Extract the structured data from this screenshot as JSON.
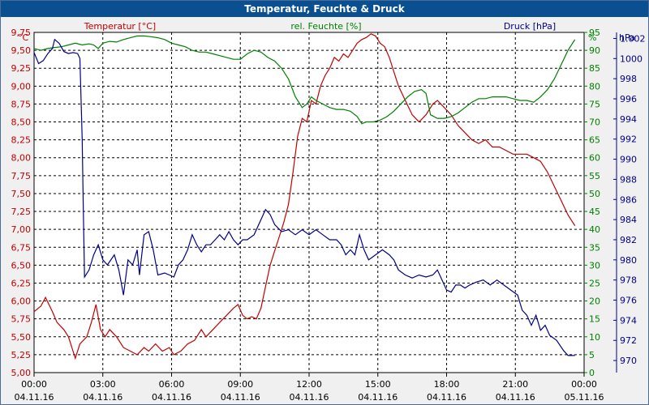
{
  "window": {
    "title": "Temperatur, Feuchte & Druck"
  },
  "colors": {
    "temperature": "#c00000",
    "humidity": "#008000",
    "pressure": "#00008b",
    "grid": "#000000",
    "background": "#ffffff"
  },
  "chart_data": {
    "type": "line",
    "title": "Temperatur, Feuchte & Druck",
    "x_ticks": [
      {
        "time": "00:00",
        "date": "04.11.16"
      },
      {
        "time": "03:00",
        "date": "04.11.16"
      },
      {
        "time": "06:00",
        "date": "04.11.16"
      },
      {
        "time": "09:00",
        "date": "04.11.16"
      },
      {
        "time": "12:00",
        "date": "04.11.16"
      },
      {
        "time": "15:00",
        "date": "04.11.16"
      },
      {
        "time": "18:00",
        "date": "04.11.16"
      },
      {
        "time": "21:00",
        "date": "04.11.16"
      },
      {
        "time": "00:00",
        "date": "05.11.16"
      }
    ],
    "xlim_hours": [
      0,
      24
    ],
    "axes": {
      "temperature": {
        "label": "Temperatur [°C]",
        "unit": "°C",
        "ylim": [
          5.0,
          9.75
        ],
        "ticks": [
          "9,75",
          "9,50",
          "9,25",
          "9,00",
          "8,75",
          "8,50",
          "8,25",
          "8,00",
          "7,75",
          "7,50",
          "7,25",
          "7,00",
          "6,75",
          "6,50",
          "6,25",
          "6,00",
          "5,75",
          "5,50",
          "5,25",
          "5,00"
        ]
      },
      "humidity": {
        "label": "rel. Feuchte [%]",
        "unit": "%",
        "ylim": [
          0,
          95
        ],
        "ticks": [
          "95",
          "90",
          "85",
          "80",
          "75",
          "70",
          "65",
          "60",
          "55",
          "50",
          "45",
          "40",
          "35",
          "30",
          "25",
          "20",
          "15",
          "10",
          "5",
          "0"
        ]
      },
      "pressure": {
        "label": "Druck [hPa]",
        "unit": "hPa",
        "ylim": [
          968.8,
          1002.6
        ],
        "ticks": [
          "1.002",
          "1000",
          "998",
          "996",
          "994",
          "992",
          "990",
          "988",
          "986",
          "984",
          "982",
          "980",
          "978",
          "976",
          "974",
          "972",
          "970"
        ]
      }
    },
    "series": [
      {
        "name": "Temperatur",
        "axis": "temperature",
        "points": [
          [
            0,
            5.85
          ],
          [
            0.3,
            5.93
          ],
          [
            0.5,
            6.05
          ],
          [
            0.8,
            5.85
          ],
          [
            1.0,
            5.7
          ],
          [
            1.3,
            5.6
          ],
          [
            1.5,
            5.5
          ],
          [
            1.7,
            5.3
          ],
          [
            1.8,
            5.2
          ],
          [
            2.0,
            5.4
          ],
          [
            2.3,
            5.5
          ],
          [
            2.5,
            5.7
          ],
          [
            2.7,
            5.95
          ],
          [
            2.9,
            5.6
          ],
          [
            3.1,
            5.5
          ],
          [
            3.3,
            5.6
          ],
          [
            3.6,
            5.5
          ],
          [
            3.9,
            5.35
          ],
          [
            4.2,
            5.3
          ],
          [
            4.5,
            5.25
          ],
          [
            4.8,
            5.35
          ],
          [
            5.0,
            5.3
          ],
          [
            5.3,
            5.4
          ],
          [
            5.6,
            5.3
          ],
          [
            5.9,
            5.35
          ],
          [
            6.1,
            5.25
          ],
          [
            6.4,
            5.3
          ],
          [
            6.7,
            5.4
          ],
          [
            7.0,
            5.45
          ],
          [
            7.3,
            5.6
          ],
          [
            7.5,
            5.5
          ],
          [
            7.8,
            5.6
          ],
          [
            8.1,
            5.7
          ],
          [
            8.4,
            5.8
          ],
          [
            8.7,
            5.9
          ],
          [
            8.9,
            5.95
          ],
          [
            9.1,
            5.8
          ],
          [
            9.3,
            5.75
          ],
          [
            9.5,
            5.78
          ],
          [
            9.7,
            5.75
          ],
          [
            9.9,
            5.9
          ],
          [
            10.1,
            6.2
          ],
          [
            10.3,
            6.5
          ],
          [
            10.5,
            6.7
          ],
          [
            10.7,
            6.9
          ],
          [
            10.9,
            7.1
          ],
          [
            11.1,
            7.35
          ],
          [
            11.3,
            7.8
          ],
          [
            11.5,
            8.3
          ],
          [
            11.7,
            8.55
          ],
          [
            11.9,
            8.5
          ],
          [
            12.1,
            8.8
          ],
          [
            12.3,
            8.75
          ],
          [
            12.5,
            9.0
          ],
          [
            12.7,
            9.15
          ],
          [
            12.9,
            9.25
          ],
          [
            13.1,
            9.4
          ],
          [
            13.3,
            9.35
          ],
          [
            13.5,
            9.45
          ],
          [
            13.7,
            9.4
          ],
          [
            13.9,
            9.5
          ],
          [
            14.1,
            9.6
          ],
          [
            14.3,
            9.65
          ],
          [
            14.5,
            9.68
          ],
          [
            14.7,
            9.73
          ],
          [
            14.9,
            9.7
          ],
          [
            15.1,
            9.6
          ],
          [
            15.3,
            9.55
          ],
          [
            15.5,
            9.4
          ],
          [
            15.7,
            9.2
          ],
          [
            15.9,
            9.0
          ],
          [
            16.2,
            8.8
          ],
          [
            16.5,
            8.6
          ],
          [
            16.8,
            8.5
          ],
          [
            17.1,
            8.6
          ],
          [
            17.4,
            8.75
          ],
          [
            17.6,
            8.8
          ],
          [
            17.9,
            8.7
          ],
          [
            18.2,
            8.6
          ],
          [
            18.5,
            8.45
          ],
          [
            18.8,
            8.35
          ],
          [
            19.1,
            8.25
          ],
          [
            19.4,
            8.2
          ],
          [
            19.7,
            8.25
          ],
          [
            20.0,
            8.15
          ],
          [
            20.3,
            8.15
          ],
          [
            20.6,
            8.1
          ],
          [
            20.9,
            8.05
          ],
          [
            21.2,
            8.05
          ],
          [
            21.5,
            8.05
          ],
          [
            21.8,
            8.0
          ],
          [
            22.1,
            7.95
          ],
          [
            22.4,
            7.8
          ],
          [
            22.7,
            7.6
          ],
          [
            23.0,
            7.4
          ],
          [
            23.3,
            7.2
          ],
          [
            23.6,
            7.05
          ]
        ]
      },
      {
        "name": "rel. Feuchte",
        "axis": "humidity",
        "points": [
          [
            0,
            90.5
          ],
          [
            0.3,
            90
          ],
          [
            0.6,
            90.5
          ],
          [
            0.9,
            90.8
          ],
          [
            1.2,
            91
          ],
          [
            1.5,
            91.5
          ],
          [
            1.8,
            92
          ],
          [
            2.1,
            91.5
          ],
          [
            2.4,
            91.8
          ],
          [
            2.6,
            91.5
          ],
          [
            2.8,
            90.5
          ],
          [
            3.0,
            92
          ],
          [
            3.3,
            92.5
          ],
          [
            3.6,
            92.3
          ],
          [
            3.9,
            93
          ],
          [
            4.2,
            93.5
          ],
          [
            4.5,
            94
          ],
          [
            4.8,
            94
          ],
          [
            5.1,
            93.8
          ],
          [
            5.4,
            93.5
          ],
          [
            5.7,
            93
          ],
          [
            6.0,
            92
          ],
          [
            6.3,
            91.5
          ],
          [
            6.6,
            91
          ],
          [
            6.9,
            90
          ],
          [
            7.2,
            89.5
          ],
          [
            7.5,
            89.5
          ],
          [
            7.8,
            89
          ],
          [
            8.1,
            88.5
          ],
          [
            8.4,
            88
          ],
          [
            8.7,
            87.5
          ],
          [
            9.0,
            87.5
          ],
          [
            9.3,
            89
          ],
          [
            9.6,
            90
          ],
          [
            9.9,
            89.5
          ],
          [
            10.2,
            88
          ],
          [
            10.5,
            87
          ],
          [
            10.8,
            85
          ],
          [
            11.1,
            82
          ],
          [
            11.4,
            77
          ],
          [
            11.7,
            74
          ],
          [
            11.9,
            75
          ],
          [
            12.1,
            77
          ],
          [
            12.3,
            76
          ],
          [
            12.6,
            75
          ],
          [
            12.9,
            74
          ],
          [
            13.2,
            73.5
          ],
          [
            13.5,
            73.5
          ],
          [
            13.8,
            73
          ],
          [
            14.1,
            71.5
          ],
          [
            14.3,
            69.5
          ],
          [
            14.5,
            70
          ],
          [
            14.8,
            70
          ],
          [
            15.1,
            70.5
          ],
          [
            15.4,
            71.5
          ],
          [
            15.7,
            73
          ],
          [
            16.0,
            75
          ],
          [
            16.3,
            77
          ],
          [
            16.6,
            78.5
          ],
          [
            16.9,
            79
          ],
          [
            17.1,
            78
          ],
          [
            17.3,
            72
          ],
          [
            17.6,
            71
          ],
          [
            17.9,
            71
          ],
          [
            18.2,
            71.5
          ],
          [
            18.5,
            72.5
          ],
          [
            18.8,
            74
          ],
          [
            19.1,
            75.5
          ],
          [
            19.4,
            76.5
          ],
          [
            19.7,
            76.5
          ],
          [
            20.0,
            77
          ],
          [
            20.3,
            77
          ],
          [
            20.6,
            77
          ],
          [
            20.9,
            76.5
          ],
          [
            21.2,
            76
          ],
          [
            21.5,
            76
          ],
          [
            21.8,
            75.5
          ],
          [
            22.1,
            77
          ],
          [
            22.4,
            79
          ],
          [
            22.7,
            82
          ],
          [
            23.0,
            86
          ],
          [
            23.3,
            90
          ],
          [
            23.6,
            93
          ]
        ]
      },
      {
        "name": "Druck",
        "axis": "pressure",
        "points": [
          [
            0,
            1000.6
          ],
          [
            0.2,
            999.5
          ],
          [
            0.4,
            999.8
          ],
          [
            0.6,
            1000.5
          ],
          [
            0.8,
            1001
          ],
          [
            0.9,
            1001.9
          ],
          [
            1.1,
            1001.5
          ],
          [
            1.3,
            1000.7
          ],
          [
            1.5,
            1000.5
          ],
          [
            1.7,
            1000.6
          ],
          [
            1.9,
            1000.5
          ],
          [
            2.0,
            1000.0
          ],
          [
            2.1,
            992
          ],
          [
            2.15,
            985
          ],
          [
            2.2,
            978.3
          ],
          [
            2.4,
            979
          ],
          [
            2.6,
            980.5
          ],
          [
            2.8,
            981.5
          ],
          [
            3.0,
            980
          ],
          [
            3.2,
            979.5
          ],
          [
            3.5,
            980.5
          ],
          [
            3.7,
            979
          ],
          [
            3.9,
            976.5
          ],
          [
            4.1,
            980
          ],
          [
            4.3,
            979.5
          ],
          [
            4.5,
            981
          ],
          [
            4.6,
            978.5
          ],
          [
            4.8,
            982.5
          ],
          [
            5.0,
            982.8
          ],
          [
            5.2,
            981
          ],
          [
            5.4,
            978.5
          ],
          [
            5.7,
            978.7
          ],
          [
            5.9,
            978.5
          ],
          [
            6.1,
            978.3
          ],
          [
            6.3,
            979.5
          ],
          [
            6.5,
            980
          ],
          [
            6.7,
            981
          ],
          [
            6.9,
            982.5
          ],
          [
            7.1,
            981.5
          ],
          [
            7.3,
            980.8
          ],
          [
            7.5,
            981.5
          ],
          [
            7.7,
            981.5
          ],
          [
            7.9,
            982
          ],
          [
            8.1,
            982.5
          ],
          [
            8.3,
            982
          ],
          [
            8.5,
            982.8
          ],
          [
            8.7,
            982
          ],
          [
            8.9,
            981.5
          ],
          [
            9.1,
            982
          ],
          [
            9.3,
            982
          ],
          [
            9.6,
            982.5
          ],
          [
            9.9,
            984
          ],
          [
            10.1,
            985
          ],
          [
            10.3,
            984.5
          ],
          [
            10.5,
            983.5
          ],
          [
            10.8,
            982.8
          ],
          [
            11.1,
            983
          ],
          [
            11.4,
            982.5
          ],
          [
            11.7,
            983
          ],
          [
            12.0,
            982.5
          ],
          [
            12.3,
            983
          ],
          [
            12.6,
            982.5
          ],
          [
            12.9,
            982
          ],
          [
            13.2,
            982
          ],
          [
            13.4,
            981.5
          ],
          [
            13.6,
            980.5
          ],
          [
            13.8,
            981
          ],
          [
            14.0,
            980.5
          ],
          [
            14.2,
            982.5
          ],
          [
            14.4,
            981
          ],
          [
            14.6,
            980
          ],
          [
            14.9,
            980.5
          ],
          [
            15.2,
            981
          ],
          [
            15.5,
            980.5
          ],
          [
            15.7,
            980
          ],
          [
            15.9,
            979
          ],
          [
            16.2,
            978.5
          ],
          [
            16.5,
            978.2
          ],
          [
            16.8,
            978.5
          ],
          [
            17.1,
            978.3
          ],
          [
            17.4,
            978.5
          ],
          [
            17.6,
            979
          ],
          [
            17.8,
            978
          ],
          [
            18.0,
            977
          ],
          [
            18.2,
            976.8
          ],
          [
            18.4,
            977.5
          ],
          [
            18.6,
            977.5
          ],
          [
            18.8,
            977.2
          ],
          [
            19.0,
            977.5
          ],
          [
            19.3,
            977.8
          ],
          [
            19.6,
            978
          ],
          [
            19.9,
            977.5
          ],
          [
            20.2,
            978
          ],
          [
            20.5,
            977.5
          ],
          [
            20.8,
            977
          ],
          [
            21.1,
            976.5
          ],
          [
            21.3,
            975
          ],
          [
            21.5,
            974.5
          ],
          [
            21.7,
            973.5
          ],
          [
            21.9,
            974.5
          ],
          [
            22.1,
            973
          ],
          [
            22.3,
            973.5
          ],
          [
            22.5,
            972.5
          ],
          [
            22.8,
            972
          ],
          [
            23.1,
            971
          ],
          [
            23.3,
            970.5
          ],
          [
            23.6,
            970.5
          ]
        ]
      }
    ]
  }
}
